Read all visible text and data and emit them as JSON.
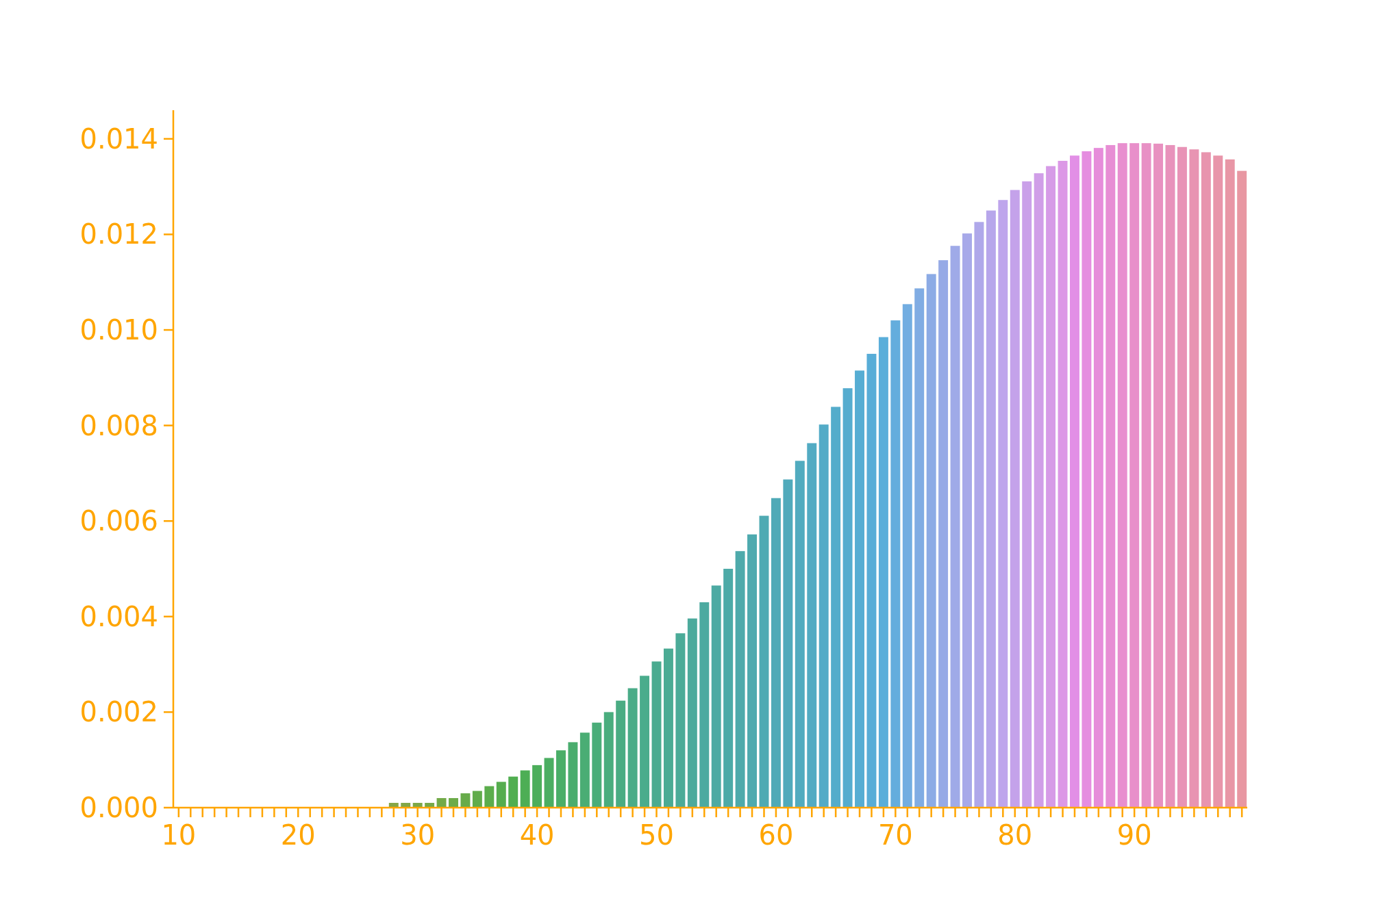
{
  "chart_data": {
    "type": "bar",
    "categories": [
      "10",
      null,
      null,
      null,
      null,
      null,
      null,
      null,
      null,
      null,
      "20",
      null,
      null,
      null,
      null,
      null,
      null,
      null,
      null,
      null,
      "30",
      null,
      null,
      null,
      null,
      null,
      null,
      null,
      null,
      null,
      "40",
      null,
      null,
      null,
      null,
      null,
      null,
      null,
      null,
      null,
      "50",
      null,
      null,
      null,
      null,
      null,
      null,
      null,
      null,
      null,
      "60",
      null,
      null,
      null,
      null,
      null,
      null,
      null,
      null,
      null,
      "70",
      null,
      null,
      null,
      null,
      null,
      null,
      null,
      null,
      null,
      "80",
      null,
      null,
      null,
      null,
      null,
      null,
      null,
      null,
      null,
      "90",
      null,
      null,
      null,
      null,
      null,
      null,
      null,
      null,
      null
    ],
    "values": [
      0,
      0,
      0,
      0,
      0,
      0,
      0,
      0,
      0,
      0,
      0,
      0,
      0,
      0,
      0,
      0,
      0,
      0,
      0.0001,
      0.0001,
      0.0001,
      0.0001,
      0.0002,
      0.0002,
      0.0003,
      0.00035,
      0.00045,
      0.00054,
      0.00065,
      0.00078,
      0.00089,
      0.00104,
      0.0012,
      0.00137,
      0.00157,
      0.00178,
      0.002,
      0.00224,
      0.0025,
      0.00276,
      0.00306,
      0.00333,
      0.00365,
      0.00396,
      0.0043,
      0.00465,
      0.005,
      0.00537,
      0.00572,
      0.00611,
      0.00648,
      0.00687,
      0.00726,
      0.00763,
      0.00802,
      0.00839,
      0.00878,
      0.00915,
      0.0095,
      0.00985,
      0.0102,
      0.01054,
      0.01087,
      0.01117,
      0.01146,
      0.01176,
      0.01202,
      0.01226,
      0.0125,
      0.01272,
      0.01293,
      0.01311,
      0.01328,
      0.01343,
      0.01354,
      0.01365,
      0.01374,
      0.01381,
      0.01387,
      0.01391,
      0.01391,
      0.01391,
      0.0139,
      0.01387,
      0.01383,
      0.01378,
      0.01372,
      0.01365,
      0.01357,
      0.01333
    ],
    "colors": [
      "#e18a8a",
      "#de8d80",
      "#da9076",
      "#d6936c",
      "#d19662",
      "#cc9959",
      "#c69c50",
      "#c09f4a",
      "#ba9f46",
      "#b4a044",
      "#aea043",
      "#a9a043",
      "#a4a044",
      "#9fa144",
      "#9aa245",
      "#95a345",
      "#90a445",
      "#8ba546",
      "#86a646",
      "#81a747",
      "#7ca847",
      "#77a948",
      "#72aa48",
      "#6cab49",
      "#67ab4a",
      "#61ac4b",
      "#5bad4c",
      "#55ad4e",
      "#50ae50",
      "#4dae55",
      "#4cae5b",
      "#4bae62",
      "#4aae68",
      "#4aad6e",
      "#4aad74",
      "#4aad79",
      "#4aad7e",
      "#4aac83",
      "#4aac88",
      "#4aac8c",
      "#4aab90",
      "#4bab94",
      "#4bab98",
      "#4caa9c",
      "#4caaa0",
      "#4daaa3",
      "#4daaa7",
      "#4eaaab",
      "#4eaaaf",
      "#4faab3",
      "#50aab7",
      "#50aabb",
      "#51abbf",
      "#52abc3",
      "#53abc7",
      "#54accb",
      "#55accf",
      "#56add3",
      "#58add7",
      "#5aaeda",
      "#64addd",
      "#72ade1",
      "#80ace3",
      "#8cabe5",
      "#96aae6",
      "#9faae8",
      "#a7a9e9",
      "#afa8ea",
      "#b7a6eb",
      "#bea5ec",
      "#c4a2ea",
      "#caa0e9",
      "#d09ee8",
      "#d69be7",
      "#dc98e6",
      "#e28fe6",
      "#e58de0",
      "#e68dda",
      "#e78ed4",
      "#e88fcf",
      "#e88fca",
      "#e890c5",
      "#e891c0",
      "#e892bb",
      "#e893b6",
      "#e894b2",
      "#e894ae",
      "#e895aa",
      "#e896a6",
      "#e897a2"
    ],
    "ylim": [
      0,
      0.0146
    ],
    "yticks": [
      {
        "value": 0,
        "label": "0.000"
      },
      {
        "value": 0.002,
        "label": "0.002"
      },
      {
        "value": 0.004,
        "label": "0.004"
      },
      {
        "value": 0.006,
        "label": "0.006"
      },
      {
        "value": 0.008,
        "label": "0.008"
      },
      {
        "value": 0.01,
        "label": "0.010"
      },
      {
        "value": 0.012,
        "label": "0.012"
      },
      {
        "value": 0.014,
        "label": "0.014"
      }
    ]
  }
}
